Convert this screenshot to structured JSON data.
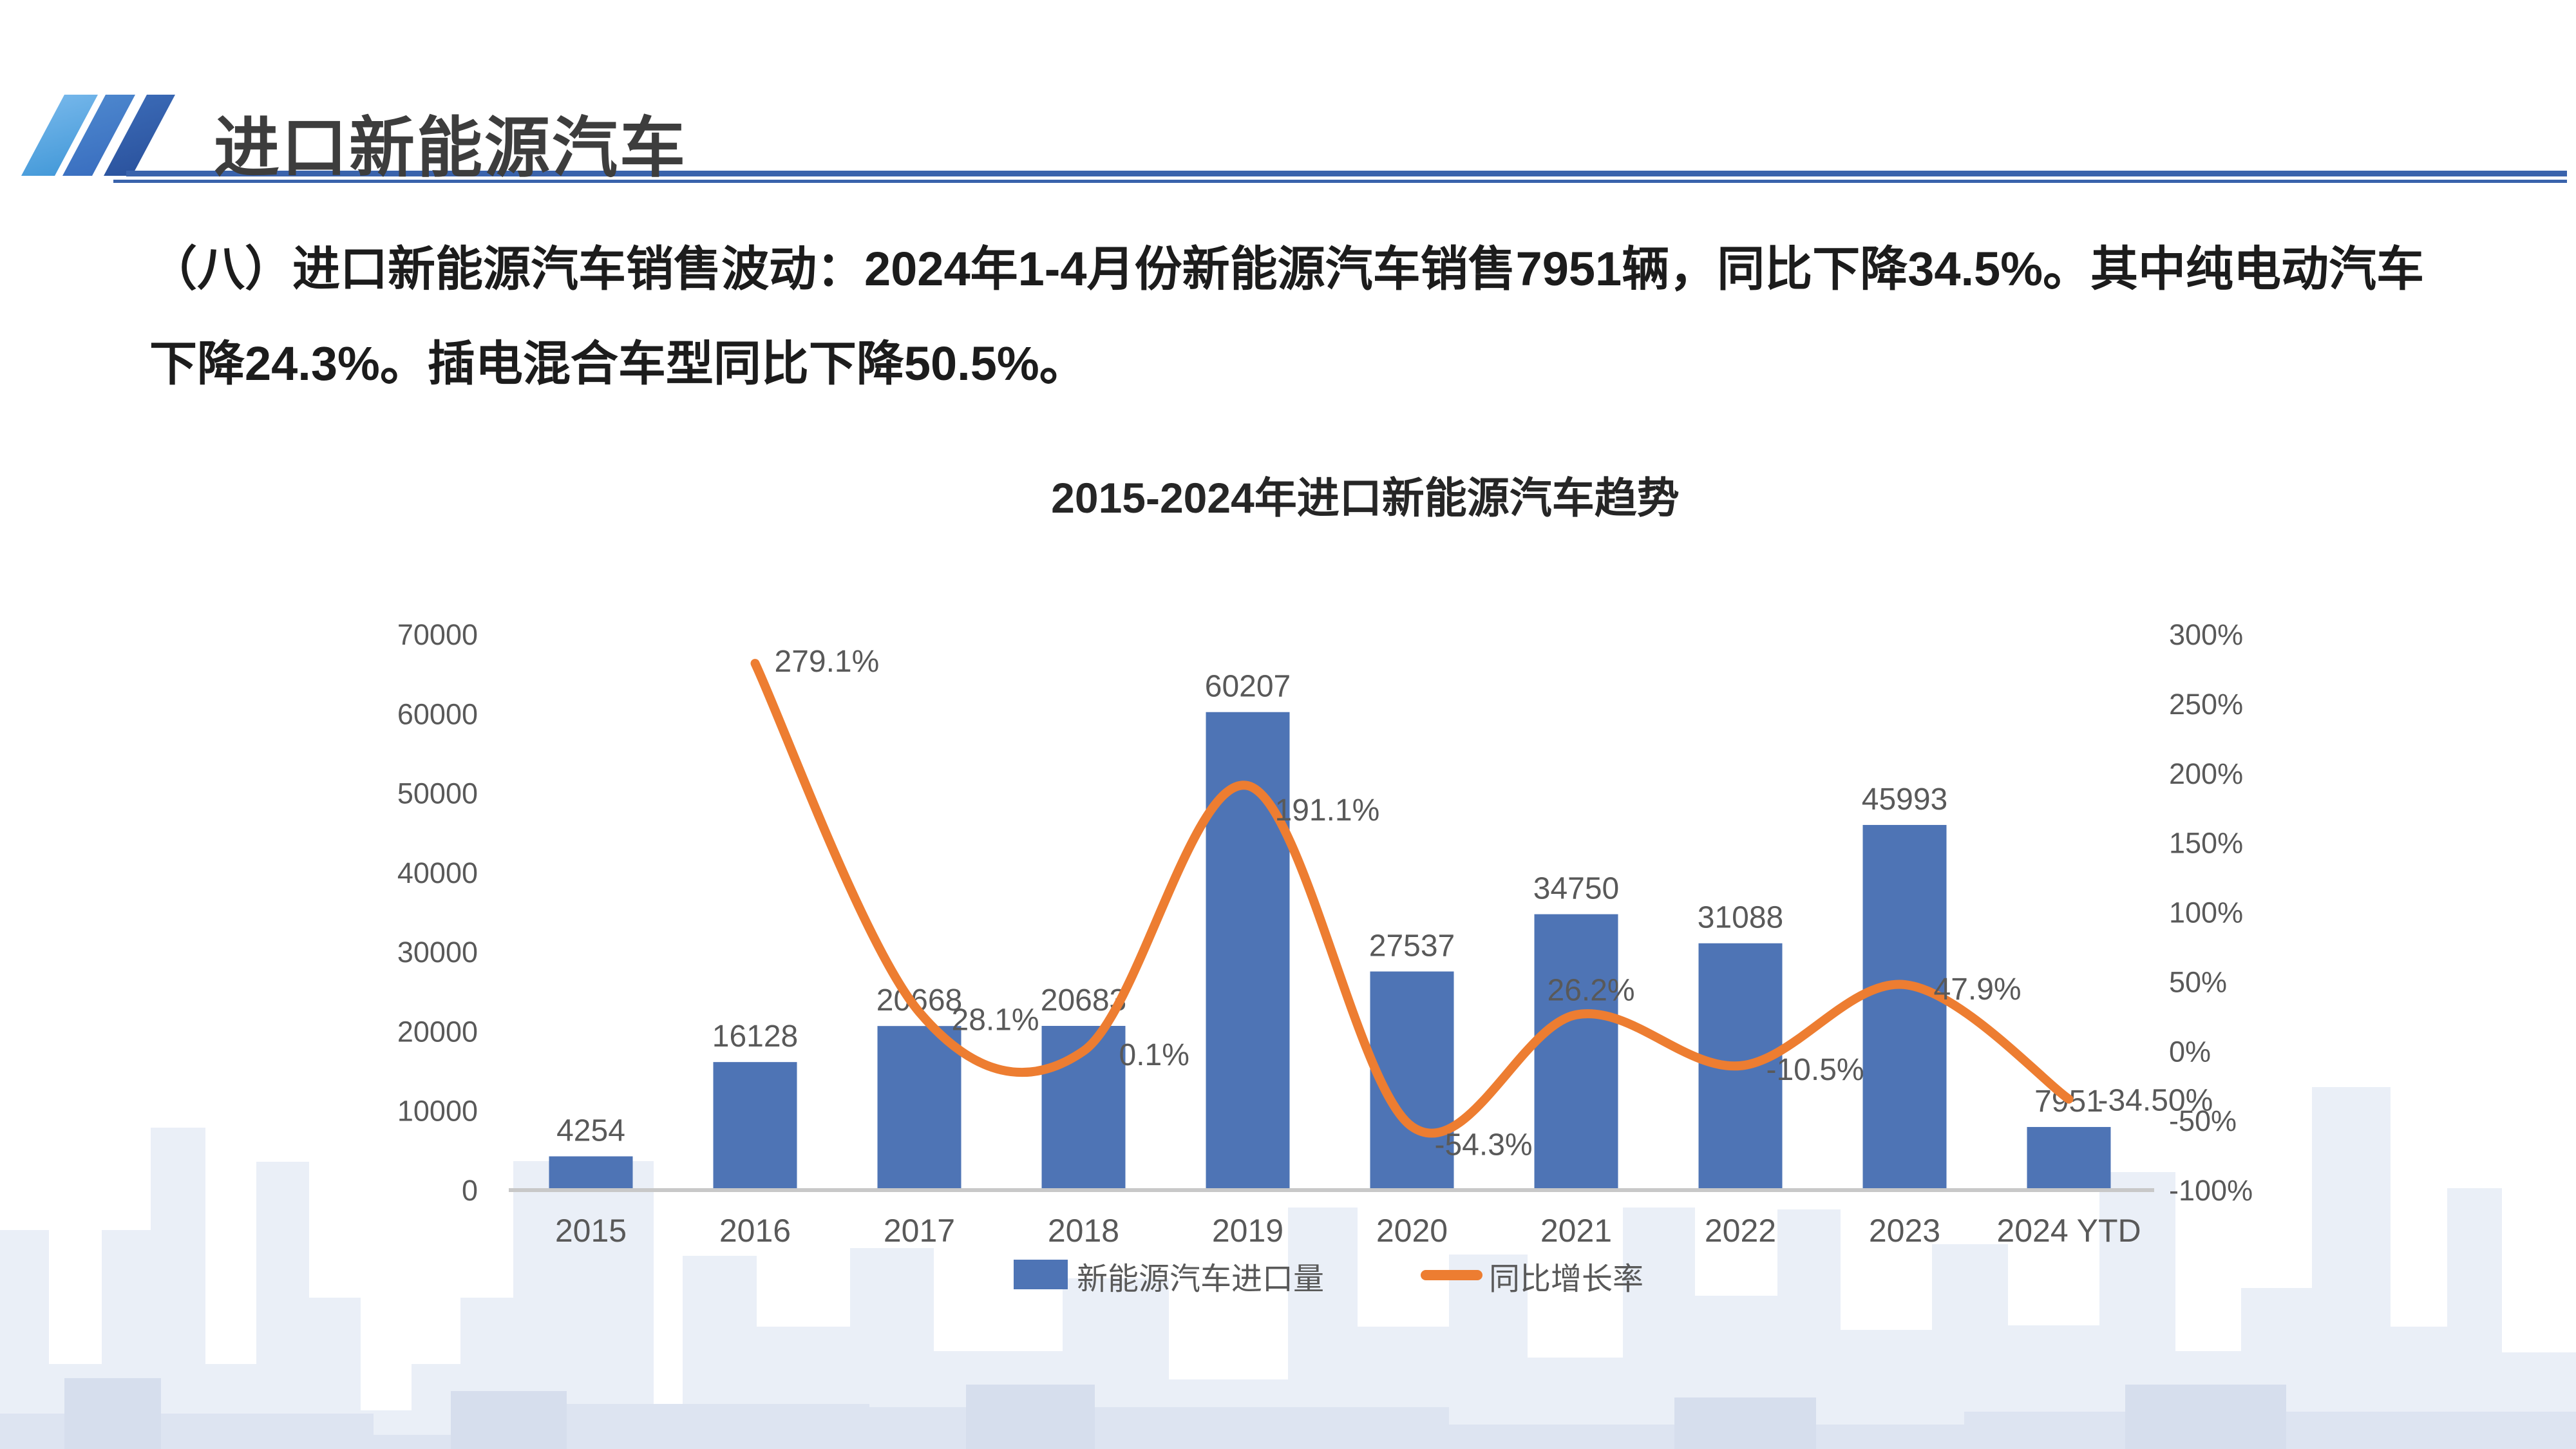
{
  "header": {
    "title": "进口新能源汽车"
  },
  "intro": {
    "line1": "（八）进口新能源汽车销售波动：2024年1-4月份新能源汽车销售7951辆，同比下降34.5%。其中纯电动汽车",
    "line2": "下降24.3%。插电混合车型同比下降50.5%。"
  },
  "chart": {
    "title": "2015-2024年进口新能源汽车趋势"
  },
  "chart_data": {
    "type": "bar+line",
    "title": "2015-2024年进口新能源汽车趋势",
    "categories": [
      "2015",
      "2016",
      "2017",
      "2018",
      "2019",
      "2020",
      "2021",
      "2022",
      "2023",
      "2024 YTD"
    ],
    "series": [
      {
        "name": "新能源汽车进口量",
        "type": "bar",
        "color": "#4e74b5",
        "values": [
          4254,
          16128,
          20668,
          20683,
          60207,
          27537,
          34750,
          31088,
          45993,
          7951
        ],
        "labels": [
          "4254",
          "16128",
          "20668",
          "20683",
          "60207",
          "27537",
          "34750",
          "31088",
          "45993",
          "7951"
        ]
      },
      {
        "name": "同比增长率",
        "type": "line",
        "color": "#ed7d31",
        "values": [
          null,
          279.1,
          28.1,
          0.1,
          191.1,
          -54.3,
          26.2,
          -10.5,
          47.9,
          -34.5
        ],
        "labels": [
          null,
          "279.1%",
          "28.1%",
          "0.1%",
          "191.1%",
          "-54.3%",
          "26.2%",
          "-10.5%",
          "47.9%",
          "-34.50%"
        ]
      }
    ],
    "left_axis": {
      "min": 0,
      "max": 70000,
      "ticks": [
        "70000",
        "60000",
        "50000",
        "40000",
        "30000",
        "20000",
        "10000",
        "0"
      ]
    },
    "right_axis": {
      "min": -100,
      "max": 300,
      "ticks": [
        "300%",
        "250%",
        "200%",
        "150%",
        "100%",
        "50%",
        "0%",
        "-50%",
        "-100%"
      ]
    },
    "legend": [
      "新能源汽车进口量",
      "同比增长率"
    ],
    "legend_position": "bottom",
    "grid": false,
    "colors": {
      "bar": "#4e74b5",
      "line": "#ed7d31",
      "axis_text": "#595959",
      "baseline": "#c8c8c8"
    }
  }
}
